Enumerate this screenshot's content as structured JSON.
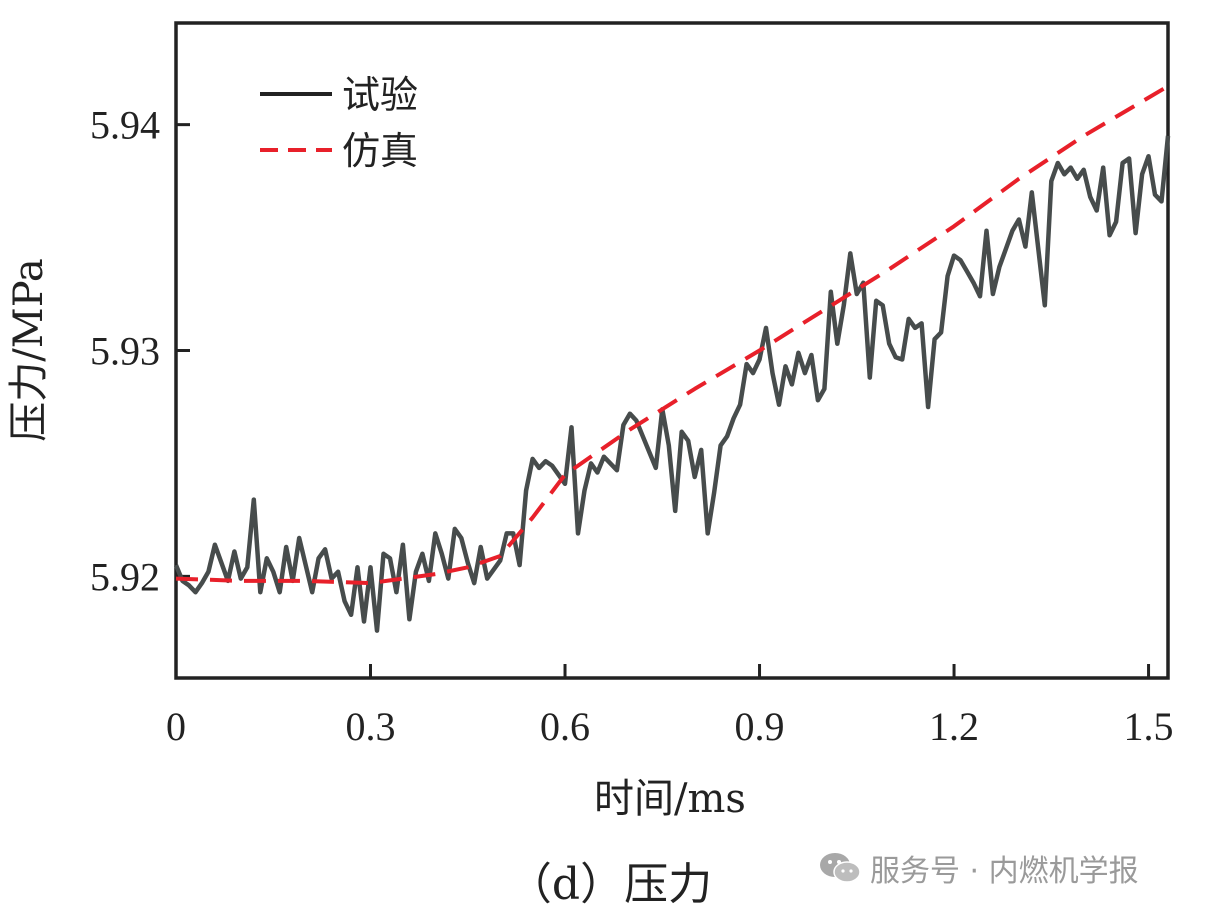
{
  "caption": "（d）压力",
  "watermark": {
    "text": "服务号 · 内燃机学报",
    "icon": "wechat-icon"
  },
  "chart_data": {
    "type": "line",
    "xlabel": "时间/ms",
    "ylabel": "压力/MPa",
    "xlim": [
      0,
      1.53
    ],
    "ylim": [
      5.9155,
      5.9445
    ],
    "x_ticks": [
      0,
      0.3,
      0.6,
      0.9,
      1.2,
      1.5
    ],
    "x_tick_labels": [
      "0",
      "0.3",
      "0.6",
      "0.9",
      "1.2",
      "1.5"
    ],
    "y_ticks": [
      5.92,
      5.93,
      5.94
    ],
    "y_tick_labels": [
      "5.92",
      "5.93",
      "5.94"
    ],
    "grid": false,
    "legend_position": "top-left",
    "colors": {
      "试验": "#474c4c",
      "仿真": "#e8202a"
    },
    "series": [
      {
        "name": "试验",
        "style": "solid",
        "x": [
          0,
          0.01,
          0.02,
          0.03,
          0.04,
          0.05,
          0.06,
          0.07,
          0.08,
          0.09,
          0.1,
          0.11,
          0.12,
          0.13,
          0.14,
          0.15,
          0.16,
          0.17,
          0.18,
          0.19,
          0.2,
          0.21,
          0.22,
          0.23,
          0.24,
          0.25,
          0.26,
          0.27,
          0.28,
          0.29,
          0.3,
          0.31,
          0.32,
          0.33,
          0.34,
          0.35,
          0.36,
          0.37,
          0.38,
          0.39,
          0.4,
          0.41,
          0.42,
          0.43,
          0.44,
          0.45,
          0.46,
          0.47,
          0.48,
          0.49,
          0.5,
          0.51,
          0.52,
          0.53,
          0.54,
          0.55,
          0.56,
          0.57,
          0.58,
          0.59,
          0.6,
          0.61,
          0.62,
          0.63,
          0.64,
          0.65,
          0.66,
          0.67,
          0.68,
          0.69,
          0.7,
          0.71,
          0.72,
          0.73,
          0.74,
          0.75,
          0.76,
          0.77,
          0.78,
          0.79,
          0.8,
          0.81,
          0.82,
          0.83,
          0.84,
          0.85,
          0.86,
          0.87,
          0.88,
          0.89,
          0.9,
          0.91,
          0.92,
          0.93,
          0.94,
          0.95,
          0.96,
          0.97,
          0.98,
          0.99,
          1.0,
          1.01,
          1.02,
          1.03,
          1.04,
          1.05,
          1.06,
          1.07,
          1.08,
          1.09,
          1.1,
          1.11,
          1.12,
          1.13,
          1.14,
          1.15,
          1.16,
          1.17,
          1.18,
          1.19,
          1.2,
          1.21,
          1.22,
          1.23,
          1.24,
          1.25,
          1.26,
          1.27,
          1.28,
          1.29,
          1.3,
          1.31,
          1.32,
          1.33,
          1.34,
          1.35,
          1.36,
          1.37,
          1.38,
          1.39,
          1.4,
          1.41,
          1.42,
          1.43,
          1.44,
          1.45,
          1.46,
          1.47,
          1.48,
          1.49,
          1.5,
          1.51,
          1.52,
          1.53
        ],
        "y": [
          5.9205,
          5.9198,
          5.9196,
          5.9193,
          5.9197,
          5.9202,
          5.9214,
          5.9206,
          5.9198,
          5.9211,
          5.9199,
          5.9204,
          5.9234,
          5.9193,
          5.9208,
          5.9202,
          5.9193,
          5.9213,
          5.9198,
          5.9217,
          5.9205,
          5.9193,
          5.9208,
          5.9212,
          5.9199,
          5.9202,
          5.9189,
          5.9183,
          5.9204,
          5.918,
          5.9204,
          5.9176,
          5.921,
          5.9208,
          5.9193,
          5.9214,
          5.9181,
          5.9202,
          5.921,
          5.9198,
          5.9219,
          5.921,
          5.9199,
          5.9221,
          5.9217,
          5.9206,
          5.9197,
          5.9213,
          5.9199,
          5.9203,
          5.9207,
          5.9219,
          5.9219,
          5.9205,
          5.9238,
          5.9252,
          5.9248,
          5.9251,
          5.9249,
          5.9245,
          5.9241,
          5.9266,
          5.9219,
          5.9238,
          5.925,
          5.9246,
          5.9253,
          5.925,
          5.9247,
          5.9267,
          5.9272,
          5.9269,
          5.9262,
          5.9255,
          5.9248,
          5.9274,
          5.9258,
          5.9229,
          5.9264,
          5.926,
          5.9244,
          5.9256,
          5.9219,
          5.9237,
          5.9258,
          5.9262,
          5.927,
          5.9276,
          5.9294,
          5.929,
          5.9296,
          5.931,
          5.929,
          5.9276,
          5.9293,
          5.9285,
          5.9299,
          5.929,
          5.9298,
          5.9278,
          5.9283,
          5.9326,
          5.9303,
          5.932,
          5.9343,
          5.9325,
          5.933,
          5.9288,
          5.9322,
          5.932,
          5.9303,
          5.9297,
          5.9296,
          5.9314,
          5.931,
          5.9312,
          5.9275,
          5.9305,
          5.9308,
          5.9333,
          5.9342,
          5.934,
          5.9335,
          5.933,
          5.9324,
          5.9353,
          5.9325,
          5.9337,
          5.9345,
          5.9353,
          5.9358,
          5.9346,
          5.937,
          5.9345,
          5.932,
          5.9375,
          5.9383,
          5.9378,
          5.9381,
          5.9376,
          5.938,
          5.9368,
          5.9362,
          5.9381,
          5.9351,
          5.9357,
          5.9383,
          5.9385,
          5.9352,
          5.9378,
          5.9386,
          5.9369,
          5.9366,
          5.9395
        ]
      },
      {
        "name": "仿真",
        "style": "dashed",
        "x": [
          0,
          0.1,
          0.2,
          0.3,
          0.4,
          0.45,
          0.5,
          0.55,
          0.6,
          0.7,
          0.8,
          0.9,
          1.0,
          1.1,
          1.2,
          1.3,
          1.4,
          1.53
        ],
        "y": [
          5.9199,
          5.9198,
          5.9198,
          5.9197,
          5.9201,
          5.9204,
          5.9209,
          5.9226,
          5.9245,
          5.9265,
          5.9283,
          5.93,
          5.9318,
          5.9336,
          5.9355,
          5.9376,
          5.9395,
          5.9417
        ]
      }
    ]
  }
}
